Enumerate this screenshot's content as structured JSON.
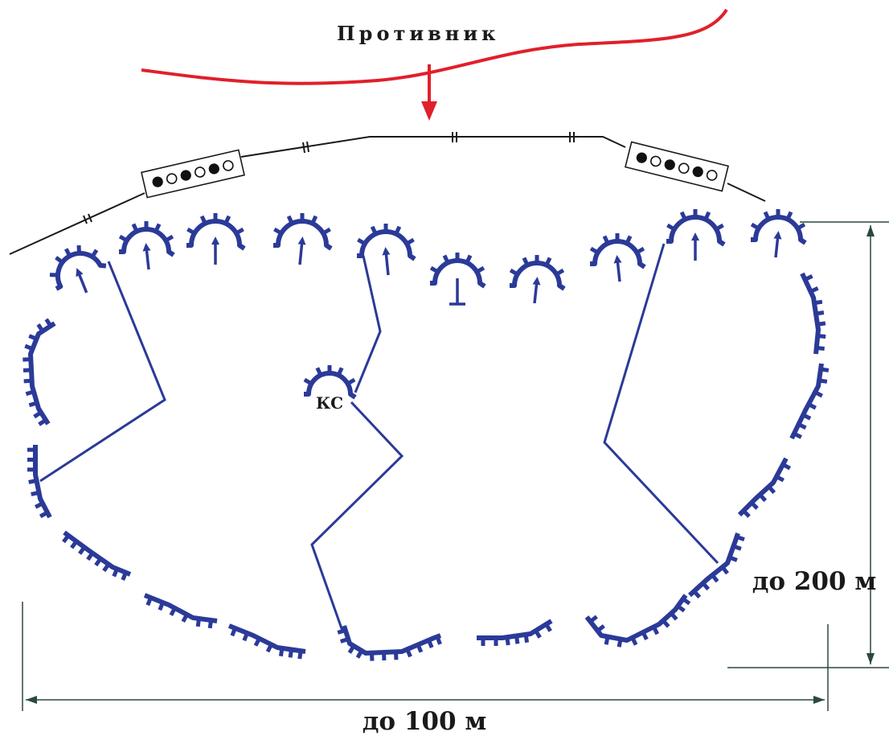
{
  "labels": {
    "enemy": "Противник",
    "command_post": "КС",
    "depth": "до 200 м",
    "width": "до 100 м"
  },
  "colors": {
    "trench": "#2b3a98",
    "enemy_line": "#e0202a",
    "wire": "#1a1a1a",
    "dimension": "#2a4a3a"
  },
  "minefields": [
    {
      "name": "left-minefield",
      "pattern": [
        "full",
        "empty",
        "full",
        "empty",
        "full",
        "empty"
      ]
    },
    {
      "name": "right-minefield",
      "pattern": [
        "full",
        "empty",
        "full",
        "empty",
        "full",
        "empty"
      ]
    }
  ]
}
